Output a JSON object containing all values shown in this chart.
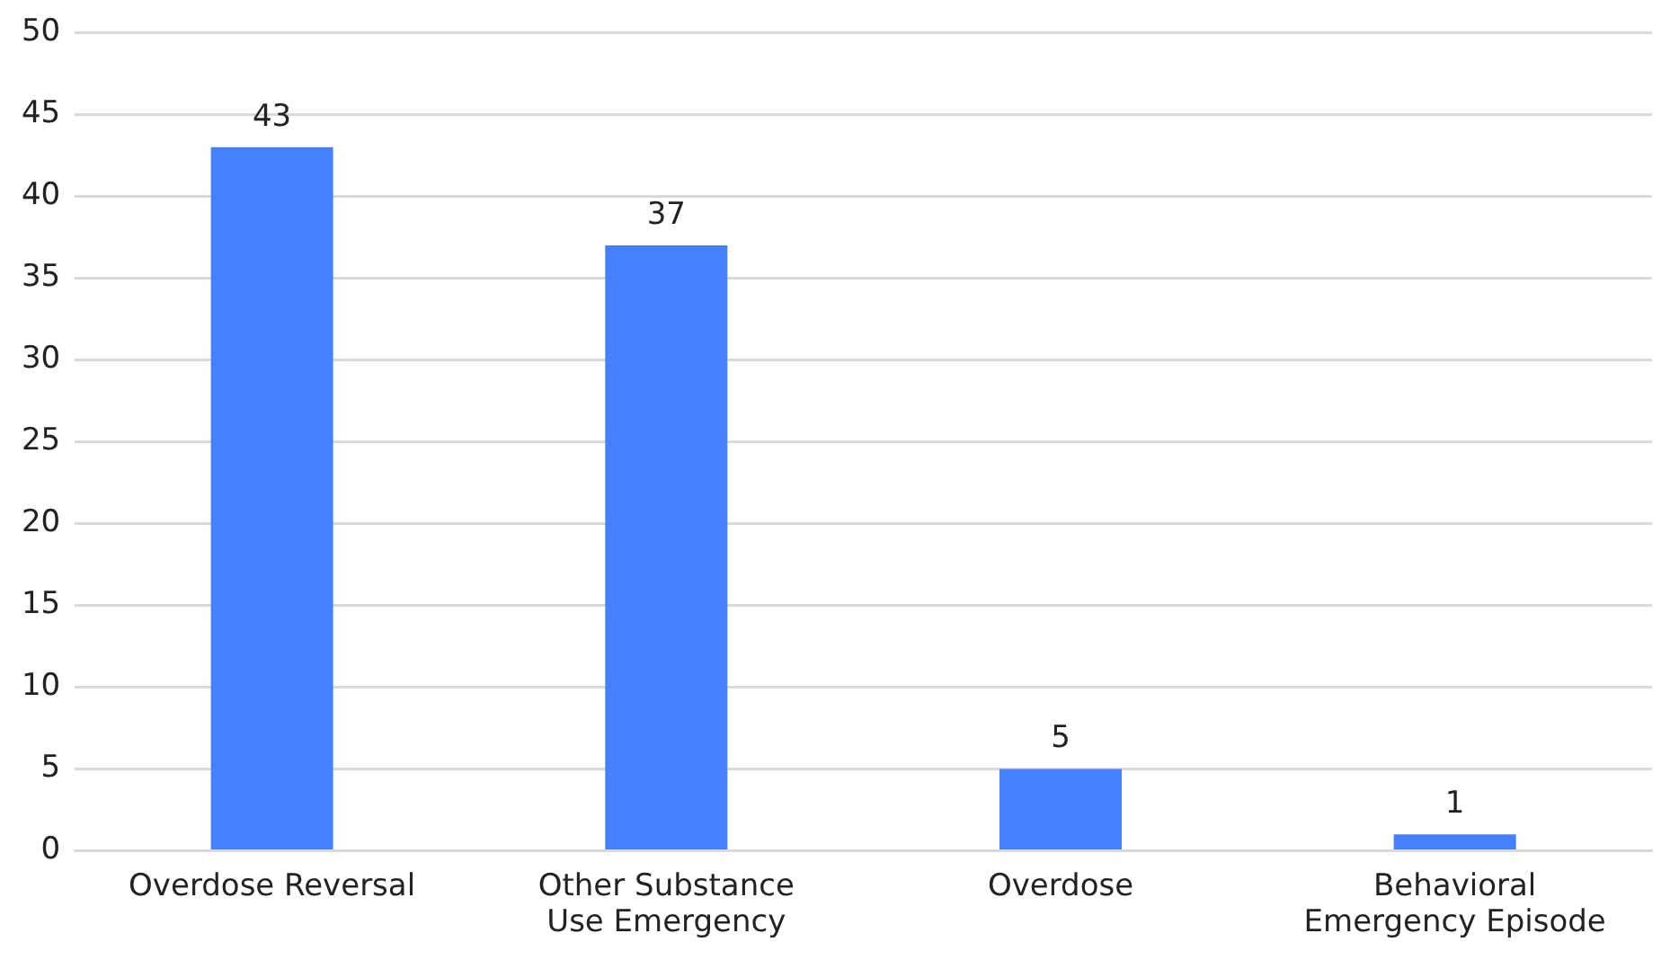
{
  "chart_data": {
    "type": "bar",
    "categories": [
      "Overdose Reversal",
      "Other Substance Use Emergency",
      "Overdose",
      "Behavioral Emergency Episode"
    ],
    "values": [
      43,
      37,
      5,
      1
    ],
    "color": "#4480ff",
    "ylim": [
      0,
      50
    ],
    "yticks": [
      0,
      5,
      10,
      15,
      20,
      25,
      30,
      35,
      40,
      45,
      50
    ],
    "grid": "y",
    "data_labels": true,
    "legend": false
  }
}
